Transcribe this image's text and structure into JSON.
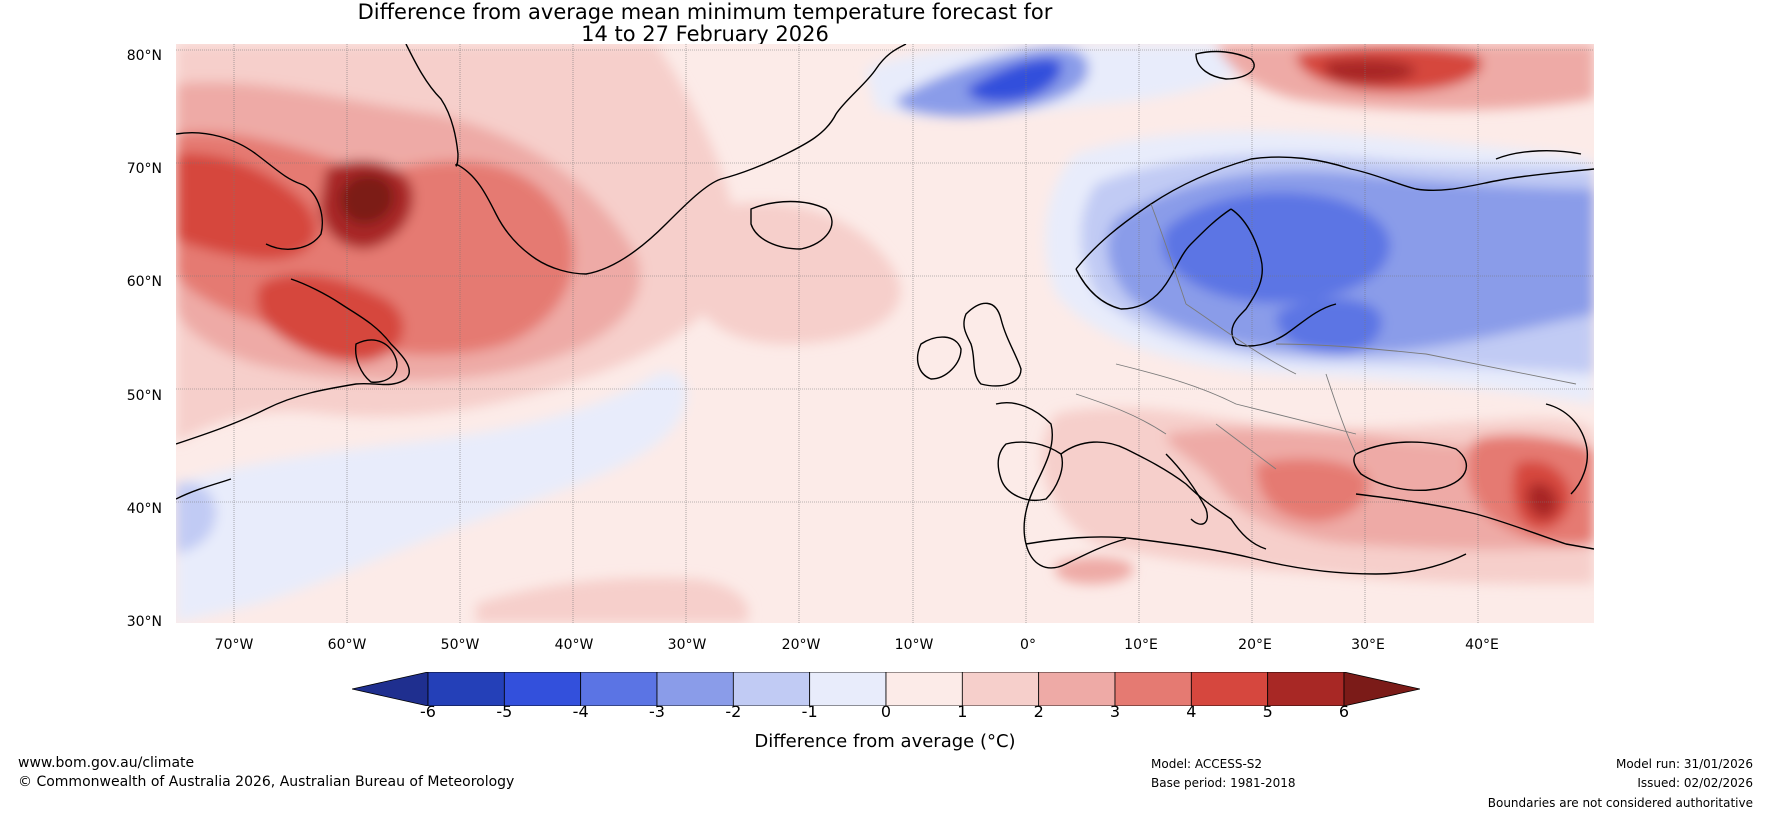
{
  "title": {
    "line1": "Difference from average mean minimum temperature forecast for",
    "line2": "14 to 27 February 2026"
  },
  "map": {
    "lat_labels": [
      "80°N",
      "70°N",
      "60°N",
      "50°N",
      "40°N",
      "30°N"
    ],
    "lon_labels": [
      "70°W",
      "60°W",
      "50°W",
      "40°W",
      "30°W",
      "20°W",
      "10°W",
      "0°",
      "10°E",
      "20°E",
      "30°E",
      "40°E"
    ]
  },
  "colorbar": {
    "ticks": [
      "-6",
      "-5",
      "-4",
      "-3",
      "-2",
      "-1",
      "0",
      "1",
      "2",
      "3",
      "4",
      "5",
      "6"
    ],
    "colors": [
      "#1f2f8f",
      "#2440b8",
      "#3350dc",
      "#5b74e4",
      "#8a9ce9",
      "#c1cbf4",
      "#e8ecfb",
      "#fcebe8",
      "#f6cfcb",
      "#eeaaa6",
      "#e57a72",
      "#d6473e",
      "#a82825",
      "#7b1b18"
    ],
    "label": "Difference from average (°C)"
  },
  "footer": {
    "website": "www.bom.gov.au/climate",
    "copyright": "© Commonwealth of Australia 2026, Australian Bureau of Meteorology",
    "model": "Model: ACCESS-S2",
    "base_period": "Base period: 1981-2018",
    "model_run": "Model run: 31/01/2026",
    "issued": "Issued: 02/02/2026",
    "disclaimer": "Boundaries are not considered authoritative"
  }
}
